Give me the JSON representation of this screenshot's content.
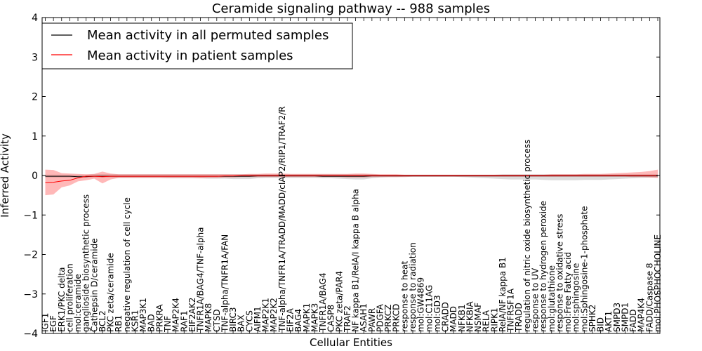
{
  "chart_data": {
    "type": "line",
    "title": "Ceramide signaling pathway -- 988 samples",
    "xlabel": "Cellular Entities",
    "ylabel": "Inferred Activity",
    "ylim": [
      -4,
      4
    ],
    "yticks": [
      -4,
      -3,
      -2,
      -1,
      0,
      1,
      2,
      3,
      4
    ],
    "ytick_labels": [
      "−4",
      "−3",
      "−2",
      "−1",
      "0",
      "1",
      "2",
      "3",
      "4"
    ],
    "grid": false,
    "legend_position": "top-left",
    "categories": [
      "IGF1",
      "EGF",
      "ERK1/PKC delta",
      "cell proliferation",
      "mol:ceramide",
      "ganglioside biosynthetic process",
      "Cathepsin D/ceramide",
      "BCL2",
      "PKC zeta/ceramide",
      "RB1",
      "negative regulation of cell cycle",
      "KSR1",
      "MAP3K1",
      "BAD",
      "PRKRA",
      "TNF",
      "MAP2K4",
      "RAF1",
      "EIF2AK2",
      "TNFR1A/BAG4/TNF-alpha",
      "MAPK8",
      "CTSD",
      "TNF-alpha/TNFR1A/FAN",
      "BIRC3",
      "BAX",
      "CYCS",
      "AIFM1",
      "MAP2K1",
      "MAP2K2",
      "TNF-alpha/TNFR1A/TRADD/MADD/cIAP2/RIP1/TRAF2/R",
      "EIF2A",
      "BAG4",
      "MAPK1",
      "MAPK3",
      "TNFR1A/BAG4",
      "CASP8",
      "PKC zeta/PAR4",
      "TRAF2",
      "NF kappa B1/RelA/I kappa B alpha",
      "ASAH1",
      "PAWR",
      "PDGFA",
      "PRKCZ",
      "PRKCD",
      "response to heat",
      "response to radiation",
      "mol:GW4869",
      "mol:C11AG",
      "mol:GD3",
      "CRADD",
      "MADD",
      "NFKB1",
      "NFKBIA",
      "NSMAF",
      "RELA",
      "RIPK1",
      "RelA/NF kappa B1",
      "TNFRSF1A",
      "TRADD",
      "regulation of nitric oxide biosynthetic process",
      "response to UV",
      "response to hydrogen peroxide",
      "mol:glutathione",
      "response to oxidative stress",
      "mol:Free Fatty acid",
      "mol:sphingosine",
      "mol:Sphingosine-1-phosphate",
      "SPHK2",
      "BID",
      "AKT1",
      "SMPD3",
      "SMPD1",
      "FADD",
      "MAP4K4",
      "FADD/Caspase 8",
      "mol:PHOSPHOCHOLINE"
    ],
    "series": [
      {
        "name": "Mean activity in all permuted samples",
        "color": "#000000",
        "values": [
          -0.02,
          -0.02,
          -0.02,
          -0.02,
          -0.03,
          -0.03,
          -0.02,
          -0.02,
          -0.02,
          -0.02,
          -0.02,
          -0.02,
          -0.02,
          -0.02,
          -0.02,
          -0.02,
          -0.02,
          -0.02,
          -0.02,
          -0.02,
          -0.02,
          -0.02,
          -0.02,
          -0.02,
          -0.02,
          -0.02,
          -0.01,
          -0.01,
          -0.01,
          -0.01,
          -0.01,
          -0.01,
          -0.01,
          -0.01,
          -0.02,
          -0.02,
          -0.02,
          -0.02,
          -0.02,
          -0.02,
          -0.01,
          -0.01,
          -0.01,
          -0.01,
          -0.01,
          -0.01,
          -0.01,
          -0.01,
          -0.01,
          -0.01,
          -0.01,
          -0.01,
          -0.01,
          -0.01,
          -0.01,
          -0.01,
          -0.01,
          -0.01,
          -0.01,
          -0.01,
          -0.01,
          -0.01,
          -0.01,
          -0.01,
          -0.01,
          -0.01,
          -0.01,
          -0.01,
          -0.01,
          -0.01,
          -0.01,
          -0.01,
          -0.01,
          -0.01,
          -0.01,
          -0.01
        ],
        "band_low": [
          -0.05,
          -0.05,
          -0.05,
          -0.05,
          -0.05,
          -0.05,
          -0.05,
          -0.05,
          -0.05,
          -0.06,
          -0.06,
          -0.06,
          -0.06,
          -0.06,
          -0.06,
          -0.07,
          -0.07,
          -0.07,
          -0.07,
          -0.07,
          -0.08,
          -0.08,
          -0.08,
          -0.09,
          -0.09,
          -0.09,
          -0.07,
          -0.06,
          -0.06,
          -0.06,
          -0.06,
          -0.06,
          -0.06,
          -0.06,
          -0.07,
          -0.07,
          -0.08,
          -0.09,
          -0.1,
          -0.1,
          -0.07,
          -0.05,
          -0.04,
          -0.04,
          -0.03,
          -0.03,
          -0.03,
          -0.03,
          -0.03,
          -0.03,
          -0.03,
          -0.04,
          -0.05,
          -0.06,
          -0.07,
          -0.08,
          -0.09,
          -0.1,
          -0.1,
          -0.1,
          -0.1,
          -0.11,
          -0.12,
          -0.12,
          -0.12,
          -0.12,
          -0.11,
          -0.11,
          -0.11,
          -0.1,
          -0.09,
          -0.08,
          -0.07,
          -0.06,
          -0.05,
          -0.05
        ],
        "band_high": [
          0.02,
          0.02,
          0.02,
          0.02,
          0.02,
          0.02,
          0.03,
          0.03,
          0.03,
          0.03,
          0.03,
          0.03,
          0.03,
          0.03,
          0.03,
          0.03,
          0.03,
          0.03,
          0.03,
          0.03,
          0.03,
          0.03,
          0.03,
          0.03,
          0.03,
          0.03,
          0.03,
          0.03,
          0.03,
          0.03,
          0.03,
          0.03,
          0.03,
          0.03,
          0.03,
          0.03,
          0.03,
          0.03,
          0.03,
          0.03,
          0.03,
          0.02,
          0.02,
          0.02,
          0.02,
          0.02,
          0.02,
          0.02,
          0.02,
          0.02,
          0.02,
          0.02,
          0.02,
          0.02,
          0.02,
          0.02,
          0.03,
          0.03,
          0.03,
          0.03,
          0.03,
          0.03,
          0.03,
          0.03,
          0.03,
          0.03,
          0.03,
          0.03,
          0.03,
          0.03,
          0.03,
          0.03,
          0.03,
          0.03,
          0.03,
          0.03
        ]
      },
      {
        "name": "Mean activity in patient samples",
        "color": "#ff0000",
        "values": [
          -0.18,
          -0.17,
          -0.14,
          -0.12,
          -0.06,
          -0.02,
          -0.02,
          -0.03,
          -0.02,
          -0.02,
          -0.02,
          -0.02,
          -0.02,
          -0.02,
          -0.02,
          -0.02,
          -0.02,
          -0.02,
          -0.02,
          -0.02,
          -0.02,
          -0.02,
          -0.01,
          -0.01,
          0.0,
          0.0,
          0.0,
          0.0,
          0.0,
          0.0,
          0.0,
          0.0,
          0.0,
          0.0,
          0.0,
          0.0,
          0.0,
          0.0,
          0.0,
          0.0,
          0.0,
          0.0,
          0.0,
          0.0,
          0.0,
          0.0,
          0.0,
          0.0,
          0.0,
          0.0,
          0.0,
          0.0,
          0.0,
          0.0,
          0.0,
          0.0,
          0.0,
          0.0,
          0.0,
          0.0,
          0.0,
          0.0,
          0.0,
          0.0,
          0.0,
          0.0,
          0.0,
          0.0,
          0.0,
          0.0,
          0.0,
          0.0,
          0.0,
          0.0,
          0.0,
          0.0
        ],
        "band_low": [
          -0.5,
          -0.48,
          -0.3,
          -0.25,
          -0.15,
          -0.12,
          -0.08,
          -0.2,
          -0.1,
          -0.06,
          -0.06,
          -0.06,
          -0.06,
          -0.06,
          -0.06,
          -0.06,
          -0.06,
          -0.06,
          -0.06,
          -0.07,
          -0.06,
          -0.06,
          -0.05,
          -0.05,
          -0.04,
          -0.04,
          -0.04,
          -0.04,
          -0.04,
          -0.04,
          -0.04,
          -0.04,
          -0.04,
          -0.04,
          -0.04,
          -0.04,
          -0.04,
          -0.05,
          -0.05,
          -0.05,
          -0.04,
          -0.04,
          -0.04,
          -0.04,
          -0.04,
          -0.03,
          -0.03,
          -0.03,
          -0.03,
          -0.03,
          -0.03,
          -0.03,
          -0.03,
          -0.03,
          -0.03,
          -0.03,
          -0.03,
          -0.03,
          -0.03,
          -0.03,
          -0.03,
          -0.03,
          -0.03,
          -0.03,
          -0.03,
          -0.03,
          -0.03,
          -0.03,
          -0.03,
          -0.03,
          -0.03,
          -0.03,
          -0.04,
          -0.04,
          -0.05,
          -0.06
        ],
        "band_high": [
          0.15,
          0.14,
          0.06,
          0.05,
          0.04,
          0.03,
          0.04,
          0.1,
          0.05,
          0.03,
          0.03,
          0.03,
          0.03,
          0.03,
          0.03,
          0.03,
          0.03,
          0.03,
          0.03,
          0.03,
          0.03,
          0.03,
          0.03,
          0.03,
          0.03,
          0.04,
          0.04,
          0.05,
          0.05,
          0.05,
          0.04,
          0.04,
          0.04,
          0.04,
          0.04,
          0.04,
          0.04,
          0.04,
          0.05,
          0.05,
          0.04,
          0.03,
          0.03,
          0.03,
          0.02,
          0.02,
          0.02,
          0.02,
          0.02,
          0.02,
          0.02,
          0.02,
          0.02,
          0.02,
          0.02,
          0.02,
          0.02,
          0.02,
          0.02,
          0.02,
          0.02,
          0.02,
          0.03,
          0.03,
          0.03,
          0.03,
          0.04,
          0.04,
          0.04,
          0.05,
          0.06,
          0.07,
          0.08,
          0.09,
          0.11,
          0.15
        ]
      }
    ]
  }
}
